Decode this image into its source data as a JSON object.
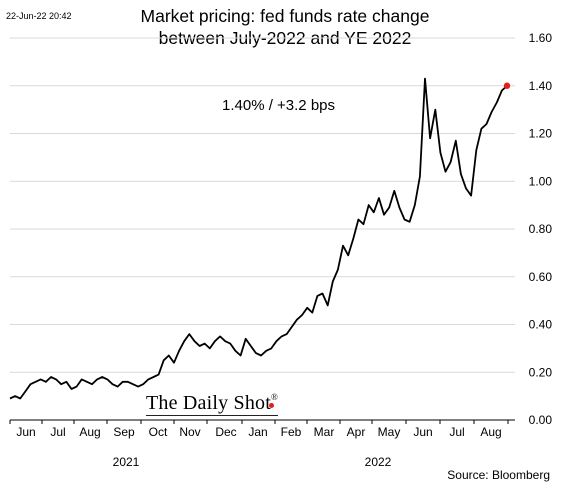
{
  "header": {
    "timestamp": "22-Jun-22 20:42",
    "title_line1": "Market pricing: fed funds rate change",
    "title_line2": "between July-2022 and YE 2022"
  },
  "annotation": "1.40%  /  +3.2 bps",
  "watermark": {
    "text": "The Daily Shot",
    "mark": "®"
  },
  "source": "Source: Bloomberg",
  "colors": {
    "line": "#000000",
    "last_point": "#e0201b",
    "grid": "#d9d9d9"
  },
  "chart_data": {
    "type": "line",
    "title": "Market pricing: fed funds rate change between July-2022 and YE 2022",
    "xlabel": "",
    "ylabel": "",
    "y_axis_side": "right",
    "ylim": [
      0.0,
      1.6
    ],
    "yticks": [
      "0.00",
      "0.20",
      "0.40",
      "0.60",
      "0.80",
      "1.00",
      "1.20",
      "1.40",
      "1.60"
    ],
    "grid": true,
    "x_month_ticks": [
      "Jun",
      "Jul",
      "Aug",
      "Sep",
      "Oct",
      "Nov",
      "Dec",
      "Jan",
      "Feb",
      "Mar",
      "Apr",
      "May",
      "Jun",
      "Jul",
      "Aug"
    ],
    "x_year_labels": [
      "2021",
      "2022"
    ],
    "series": [
      {
        "values": [
          0.09,
          0.1,
          0.09,
          0.12,
          0.15,
          0.16,
          0.17,
          0.16,
          0.18,
          0.17,
          0.15,
          0.16,
          0.13,
          0.14,
          0.17,
          0.16,
          0.15,
          0.17,
          0.18,
          0.17,
          0.15,
          0.14,
          0.16,
          0.16,
          0.15,
          0.14,
          0.15,
          0.17,
          0.18,
          0.19,
          0.25,
          0.27,
          0.24,
          0.29,
          0.33,
          0.36,
          0.33,
          0.31,
          0.32,
          0.3,
          0.33,
          0.35,
          0.33,
          0.32,
          0.29,
          0.27,
          0.34,
          0.31,
          0.28,
          0.27,
          0.29,
          0.3,
          0.33,
          0.35,
          0.36,
          0.39,
          0.42,
          0.44,
          0.47,
          0.45,
          0.52,
          0.53,
          0.48,
          0.58,
          0.63,
          0.73,
          0.69,
          0.76,
          0.84,
          0.82,
          0.9,
          0.87,
          0.93,
          0.86,
          0.89,
          0.96,
          0.89,
          0.84,
          0.83,
          0.9,
          1.02,
          1.43,
          1.18,
          1.3,
          1.12,
          1.04,
          1.08,
          1.17,
          1.03,
          0.97,
          0.94,
          1.13,
          1.22,
          1.24,
          1.29,
          1.33,
          1.38,
          1.4
        ],
        "last_value_label": "1.40%"
      }
    ]
  }
}
